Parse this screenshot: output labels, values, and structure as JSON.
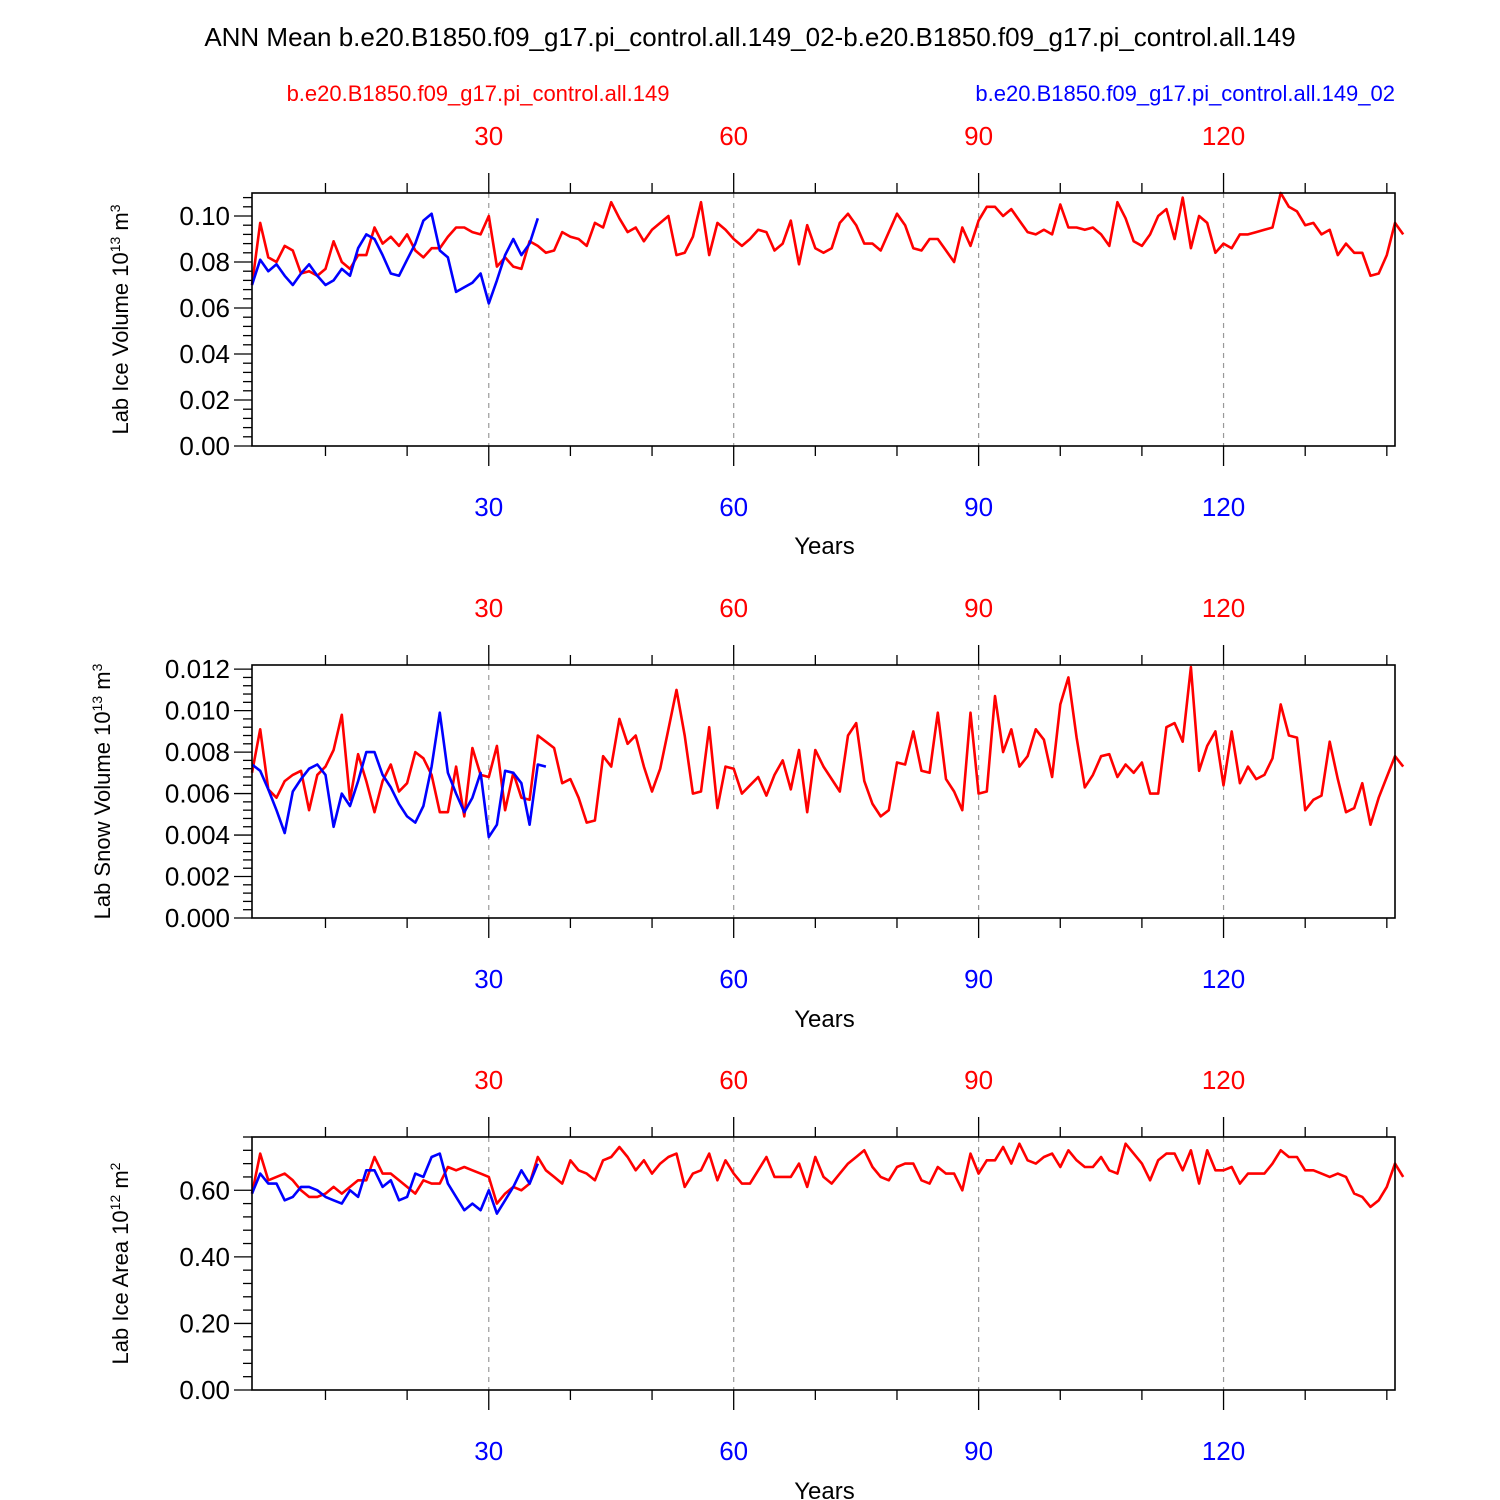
{
  "title": "ANN Mean b.e20.B1850.f09_g17.pi_control.all.149_02-b.e20.B1850.f09_g17.pi_control.all.149",
  "legend": {
    "left": "b.e20.B1850.f09_g17.pi_control.all.149",
    "right": "b.e20.B1850.f09_g17.pi_control.all.149_02"
  },
  "colors": {
    "case_red": "#ff0000",
    "case_blue": "#0000ff",
    "grid": "#999999"
  },
  "chart_data": [
    {
      "type": "line",
      "xlabel": "Years",
      "ylabel": "Lab Ice Volume",
      "yunit": "10^13 m^3",
      "xlim": [
        1,
        141
      ],
      "ylim": [
        0,
        0.11
      ],
      "xticks": [
        30,
        60,
        90,
        120
      ],
      "yticks": [
        "0.00",
        "0.02",
        "0.04",
        "0.06",
        "0.08",
        "0.10"
      ],
      "yvals": [
        0,
        0.02,
        0.04,
        0.06,
        0.08,
        0.1
      ],
      "grid": "dashed vertical at top ticks",
      "series": [
        {
          "color": "red",
          "x_start": 1,
          "values": [
            0.07,
            0.097,
            0.082,
            0.08,
            0.087,
            0.085,
            0.075,
            0.076,
            0.074,
            0.077,
            0.089,
            0.08,
            0.077,
            0.083,
            0.083,
            0.095,
            0.088,
            0.091,
            0.087,
            0.092,
            0.085,
            0.082,
            0.086,
            0.086,
            0.091,
            0.095,
            0.095,
            0.093,
            0.092,
            0.1,
            0.078,
            0.082,
            0.078,
            0.077,
            0.089,
            0.087,
            0.084,
            0.085,
            0.093,
            0.091,
            0.09,
            0.087,
            0.097,
            0.095,
            0.106,
            0.099,
            0.093,
            0.095,
            0.089,
            0.094,
            0.097,
            0.1,
            0.083,
            0.084,
            0.091,
            0.106,
            0.083,
            0.097,
            0.094,
            0.09,
            0.087,
            0.09,
            0.094,
            0.093,
            0.085,
            0.088,
            0.098,
            0.079,
            0.096,
            0.086,
            0.084,
            0.086,
            0.097,
            0.101,
            0.096,
            0.088,
            0.088,
            0.085,
            0.093,
            0.101,
            0.096,
            0.086,
            0.085,
            0.09,
            0.09,
            0.085,
            0.08,
            0.095,
            0.087,
            0.098,
            0.104,
            0.104,
            0.1,
            0.103,
            0.098,
            0.093,
            0.092,
            0.094,
            0.092,
            0.105,
            0.095,
            0.095,
            0.094,
            0.095,
            0.092,
            0.087,
            0.106,
            0.099,
            0.089,
            0.087,
            0.092,
            0.1,
            0.103,
            0.09,
            0.108,
            0.086,
            0.1,
            0.097,
            0.084,
            0.088,
            0.086,
            0.092,
            0.092,
            0.093,
            0.094,
            0.095,
            0.11,
            0.104,
            0.102,
            0.096,
            0.097,
            0.092,
            0.094,
            0.083,
            0.088,
            0.084,
            0.084,
            0.074,
            0.075,
            0.083,
            0.097,
            0.092
          ]
        },
        {
          "color": "blue",
          "x_start": 1,
          "values": [
            0.07,
            0.081,
            0.076,
            0.079,
            0.074,
            0.07,
            0.075,
            0.079,
            0.074,
            0.07,
            0.072,
            0.077,
            0.074,
            0.086,
            0.092,
            0.09,
            0.083,
            0.075,
            0.074,
            0.081,
            0.088,
            0.098,
            0.101,
            0.085,
            0.082,
            0.067,
            0.069,
            0.071,
            0.075,
            0.062,
            0.072,
            0.083,
            0.09,
            0.083,
            0.088,
            0.099
          ]
        }
      ]
    },
    {
      "type": "line",
      "xlabel": "Years",
      "ylabel": "Lab Snow Volume",
      "yunit": "10^13 m^3",
      "xlim": [
        1,
        141
      ],
      "ylim": [
        0,
        0.0122
      ],
      "xticks": [
        30,
        60,
        90,
        120
      ],
      "yticks": [
        "0.000",
        "0.002",
        "0.004",
        "0.006",
        "0.008",
        "0.010",
        "0.012"
      ],
      "yvals": [
        0,
        0.002,
        0.004,
        0.006,
        0.008,
        0.01,
        0.012
      ],
      "grid": "dashed vertical at top ticks",
      "series": [
        {
          "color": "red",
          "x_start": 1,
          "values": [
            0.007,
            0.0091,
            0.0062,
            0.0058,
            0.0066,
            0.0069,
            0.0071,
            0.0052,
            0.0069,
            0.0073,
            0.0081,
            0.0098,
            0.0057,
            0.0079,
            0.0066,
            0.0051,
            0.0066,
            0.0074,
            0.0061,
            0.0065,
            0.008,
            0.0077,
            0.0069,
            0.0051,
            0.0051,
            0.0073,
            0.0049,
            0.0082,
            0.0069,
            0.0068,
            0.0083,
            0.0052,
            0.007,
            0.0058,
            0.0057,
            0.0088,
            0.0085,
            0.0082,
            0.0065,
            0.0067,
            0.0058,
            0.0046,
            0.0047,
            0.0078,
            0.0073,
            0.0096,
            0.0084,
            0.0088,
            0.0073,
            0.0061,
            0.0072,
            0.0091,
            0.011,
            0.0088,
            0.006,
            0.0061,
            0.0092,
            0.0053,
            0.0073,
            0.0072,
            0.006,
            0.0064,
            0.0068,
            0.0059,
            0.0069,
            0.0076,
            0.0062,
            0.0081,
            0.0051,
            0.0081,
            0.0073,
            0.0067,
            0.0061,
            0.0088,
            0.0094,
            0.0066,
            0.0055,
            0.0049,
            0.0052,
            0.0075,
            0.0074,
            0.009,
            0.0071,
            0.007,
            0.0099,
            0.0067,
            0.0061,
            0.0052,
            0.0099,
            0.006,
            0.0061,
            0.0107,
            0.008,
            0.0091,
            0.0073,
            0.0078,
            0.0091,
            0.0086,
            0.0068,
            0.0103,
            0.0116,
            0.0087,
            0.0063,
            0.0069,
            0.0078,
            0.0079,
            0.0068,
            0.0074,
            0.007,
            0.0075,
            0.006,
            0.006,
            0.0092,
            0.0094,
            0.0085,
            0.0121,
            0.0071,
            0.0083,
            0.009,
            0.0064,
            0.009,
            0.0065,
            0.0073,
            0.0067,
            0.0069,
            0.0077,
            0.0103,
            0.0088,
            0.0087,
            0.0052,
            0.0057,
            0.0059,
            0.0085,
            0.0067,
            0.0051,
            0.0053,
            0.0065,
            0.0045,
            0.0058,
            0.0068,
            0.0078,
            0.0073
          ]
        },
        {
          "color": "blue",
          "x_start": 1,
          "values": [
            0.0074,
            0.0071,
            0.0062,
            0.0052,
            0.0041,
            0.0061,
            0.0067,
            0.0072,
            0.0074,
            0.0069,
            0.0044,
            0.006,
            0.0054,
            0.0066,
            0.008,
            0.008,
            0.0069,
            0.0063,
            0.0055,
            0.0049,
            0.0046,
            0.0054,
            0.0073,
            0.0099,
            0.007,
            0.006,
            0.0051,
            0.0058,
            0.007,
            0.0039,
            0.0045,
            0.0071,
            0.007,
            0.0065,
            0.0045,
            0.0074,
            0.0073
          ]
        }
      ]
    },
    {
      "type": "line",
      "xlabel": "Years",
      "ylabel": "Lab Ice Area",
      "yunit": "10^12 m^2",
      "xlim": [
        1,
        141
      ],
      "ylim": [
        0,
        0.76
      ],
      "xticks": [
        30,
        60,
        90,
        120
      ],
      "yticks": [
        "0.00",
        "0.20",
        "0.40",
        "0.60"
      ],
      "yvals": [
        0,
        0.2,
        0.4,
        0.6
      ],
      "grid": "dashed vertical at top ticks",
      "series": [
        {
          "color": "red",
          "x_start": 1,
          "values": [
            0.59,
            0.71,
            0.63,
            0.64,
            0.65,
            0.63,
            0.6,
            0.58,
            0.58,
            0.59,
            0.61,
            0.59,
            0.61,
            0.63,
            0.63,
            0.7,
            0.65,
            0.65,
            0.63,
            0.61,
            0.59,
            0.63,
            0.62,
            0.62,
            0.67,
            0.66,
            0.67,
            0.66,
            0.65,
            0.64,
            0.56,
            0.59,
            0.61,
            0.6,
            0.62,
            0.7,
            0.66,
            0.64,
            0.62,
            0.69,
            0.66,
            0.65,
            0.63,
            0.69,
            0.7,
            0.73,
            0.7,
            0.66,
            0.69,
            0.65,
            0.68,
            0.7,
            0.71,
            0.61,
            0.65,
            0.66,
            0.71,
            0.63,
            0.69,
            0.65,
            0.62,
            0.62,
            0.66,
            0.7,
            0.64,
            0.64,
            0.64,
            0.68,
            0.61,
            0.7,
            0.64,
            0.62,
            0.65,
            0.68,
            0.7,
            0.72,
            0.67,
            0.64,
            0.63,
            0.67,
            0.68,
            0.68,
            0.63,
            0.62,
            0.67,
            0.65,
            0.65,
            0.6,
            0.71,
            0.65,
            0.69,
            0.69,
            0.73,
            0.68,
            0.74,
            0.69,
            0.68,
            0.7,
            0.71,
            0.67,
            0.72,
            0.69,
            0.67,
            0.67,
            0.7,
            0.66,
            0.65,
            0.74,
            0.71,
            0.68,
            0.63,
            0.69,
            0.71,
            0.71,
            0.66,
            0.72,
            0.62,
            0.72,
            0.66,
            0.66,
            0.67,
            0.62,
            0.65,
            0.65,
            0.65,
            0.68,
            0.72,
            0.7,
            0.7,
            0.66,
            0.66,
            0.65,
            0.64,
            0.65,
            0.64,
            0.59,
            0.58,
            0.55,
            0.57,
            0.61,
            0.68,
            0.64
          ]
        },
        {
          "color": "blue",
          "x_start": 1,
          "values": [
            0.59,
            0.65,
            0.62,
            0.62,
            0.57,
            0.58,
            0.61,
            0.61,
            0.6,
            0.58,
            0.57,
            0.56,
            0.6,
            0.58,
            0.66,
            0.66,
            0.61,
            0.63,
            0.57,
            0.58,
            0.65,
            0.64,
            0.7,
            0.71,
            0.62,
            0.58,
            0.54,
            0.56,
            0.54,
            0.6,
            0.53,
            0.57,
            0.61,
            0.66,
            0.62,
            0.68
          ]
        }
      ]
    }
  ]
}
